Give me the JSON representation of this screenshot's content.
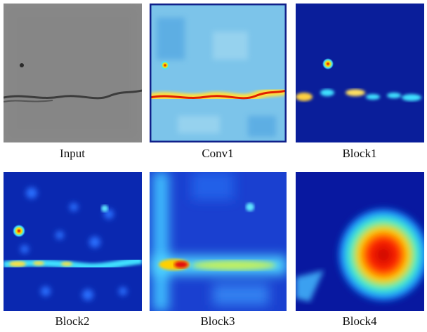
{
  "panels": [
    {
      "caption": "Input"
    },
    {
      "caption": "Conv1"
    },
    {
      "caption": "Block1"
    },
    {
      "caption": "Block2"
    },
    {
      "caption": "Block3"
    },
    {
      "caption": "Block4"
    }
  ]
}
